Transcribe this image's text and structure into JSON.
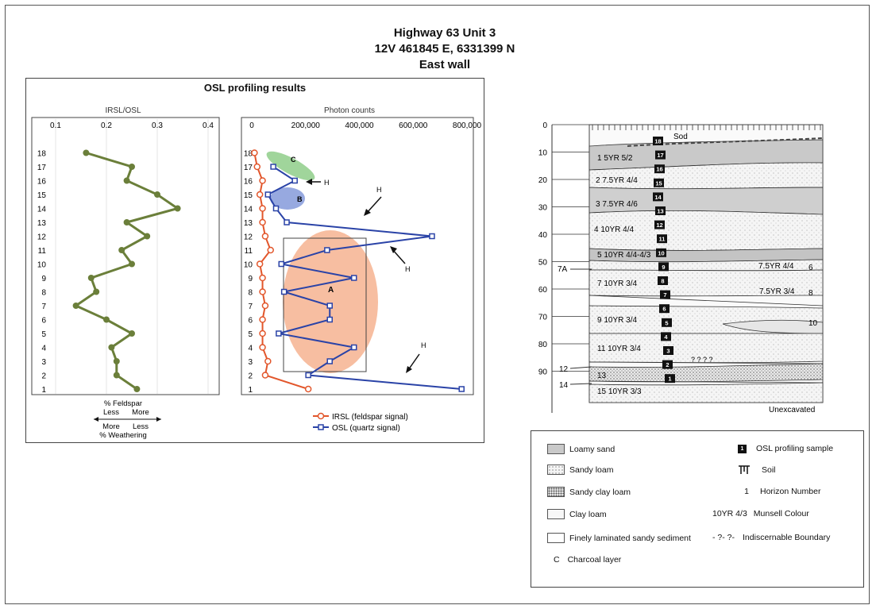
{
  "title": {
    "line1": "Highway 63 Unit 3",
    "line2": "12V 461845 E, 6331399 N",
    "line3": "East wall"
  },
  "panel_title": "OSL profiling results",
  "chart_data": [
    {
      "type": "line",
      "title": "IRSL/OSL",
      "xlim": [
        0.1,
        0.4
      ],
      "x_ticks": [
        "0.1",
        "0.2",
        "0.3",
        "0.4"
      ],
      "y": [
        18,
        17,
        16,
        15,
        14,
        13,
        12,
        11,
        10,
        9,
        8,
        7,
        6,
        5,
        4,
        3,
        2,
        1
      ],
      "values": [
        0.16,
        0.25,
        0.24,
        0.3,
        0.34,
        0.24,
        0.28,
        0.23,
        0.25,
        0.17,
        0.18,
        0.14,
        0.2,
        0.25,
        0.21,
        0.22,
        0.22,
        0.26
      ],
      "color": "#6b7f3a",
      "xlabel_lines": [
        "% Feldspar",
        "Less",
        "More",
        "More",
        "Less",
        "% Weathering"
      ]
    },
    {
      "type": "line",
      "title": "Photon counts",
      "xlim": [
        0,
        800000
      ],
      "x_ticks": [
        "0",
        "200,000",
        "400,000",
        "600,000",
        "800,000"
      ],
      "y": [
        18,
        17,
        16,
        15,
        14,
        13,
        12,
        11,
        10,
        9,
        8,
        7,
        6,
        5,
        4,
        3,
        2,
        1
      ],
      "series": [
        {
          "name": "IRSL (feldspar signal)",
          "color": "#e2562b",
          "marker": "circle",
          "values": [
            10000,
            20000,
            40000,
            30000,
            40000,
            40000,
            50000,
            70000,
            30000,
            40000,
            40000,
            50000,
            40000,
            40000,
            40000,
            60000,
            50000,
            210000
          ]
        },
        {
          "name": "OSL (quartz signal)",
          "color": "#2a43a7",
          "marker": "square",
          "values": [
            null,
            80000,
            160000,
            60000,
            90000,
            130000,
            670000,
            280000,
            110000,
            380000,
            120000,
            290000,
            290000,
            100000,
            380000,
            290000,
            210000,
            780000
          ]
        }
      ],
      "annotations": [
        "C",
        "B",
        "A",
        "H",
        "H",
        "H",
        "H"
      ]
    }
  ],
  "profile": {
    "depth_ticks": [
      "0",
      "10",
      "20",
      "30",
      "40",
      "50",
      "60",
      "70",
      "80",
      "90"
    ],
    "labels": {
      "sod": "Sod",
      "l7a": "7A",
      "l12": "12",
      "l14": "14",
      "unexcavated": "Unexcavated",
      "h1": "1  5YR 5/2",
      "h2": "2  7.5YR 4/4",
      "h3": "3  7.5YR 4/6",
      "h4": "4    10YR 4/4",
      "h5": "5  10YR 4/4-4/3",
      "h5r": "7.5YR 4/4",
      "h6": "6",
      "h7": "7   10YR 3/4",
      "h7r": "7.5YR 3/4",
      "h8": "8",
      "h9": "9   10YR 3/4",
      "h10": "10",
      "h11": "11  10YR 3/4",
      "h13": "13",
      "h15": "15  10YR 3/3",
      "boundary": "?   ?   ?   ?"
    },
    "samples": [
      "18",
      "17",
      "16",
      "15",
      "14",
      "13",
      "12",
      "11",
      "10",
      "9",
      "8",
      "7",
      "6",
      "5",
      "4",
      "3",
      "2",
      "1"
    ]
  },
  "legend": {
    "loamy_sand": "Loamy sand",
    "sandy_loam": "Sandy loam",
    "sandy_clay_loam": "Sandy clay loam",
    "clay_loam": "Clay loam",
    "laminated": "Finely laminated sandy sediment",
    "charcoal": "Charcoal layer",
    "charcoal_key": "C",
    "osl_sample": "OSL profiling sample",
    "osl_sample_key": "1",
    "soil": "Soil",
    "horizon": "Horizon Number",
    "horizon_key": "1",
    "munsell": "Munsell Colour",
    "munsell_key": "10YR 4/3",
    "boundary": "Indiscernable Boundary",
    "boundary_key": "- ?- ?-",
    "irsl": "IRSL (feldspar signal)",
    "osl": "OSL (quartz signal)"
  }
}
